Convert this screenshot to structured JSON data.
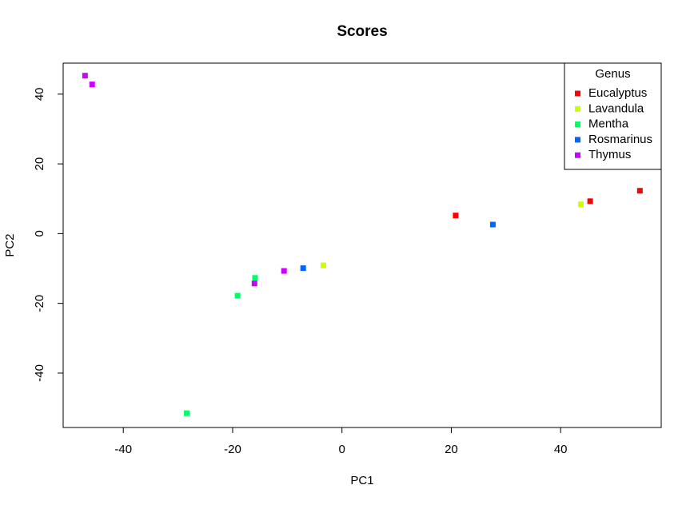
{
  "chart_data": {
    "type": "scatter",
    "title": "Scores",
    "x_label": "PC1",
    "y_label": "PC2",
    "legend_title": "Genus",
    "legend_position": "top-right",
    "grid": false,
    "xlim": [
      -51,
      58.4
    ],
    "ylim": [
      -55.6,
      48.9
    ],
    "xticks": [
      -40,
      -20,
      0,
      20,
      40
    ],
    "yticks": [
      -40,
      -20,
      0,
      20,
      40
    ],
    "series": [
      {
        "name": "Eucalyptus",
        "color": "#ff0000",
        "x": [
          20.8,
          45.4,
          54.5
        ],
        "values": [
          5.2,
          9.3,
          12.3
        ]
      },
      {
        "name": "Lavandula",
        "color": "#ccff00",
        "x": [
          43.7,
          -3.4
        ],
        "values": [
          8.4,
          -9.1
        ]
      },
      {
        "name": "Mentha",
        "color": "#00ff66",
        "x": [
          -28.4,
          -19.1,
          -15.9
        ],
        "values": [
          -51.5,
          -17.8,
          -12.7
        ]
      },
      {
        "name": "Rosmarinus",
        "color": "#0066ff",
        "x": [
          27.6,
          -7.1
        ],
        "values": [
          2.6,
          -9.9
        ]
      },
      {
        "name": "Thymus",
        "color": "#cc00ff",
        "x": [
          -47.0,
          -45.7,
          -16.0,
          -10.6
        ],
        "values": [
          45.3,
          42.8,
          -14.3,
          -10.7
        ]
      }
    ]
  }
}
